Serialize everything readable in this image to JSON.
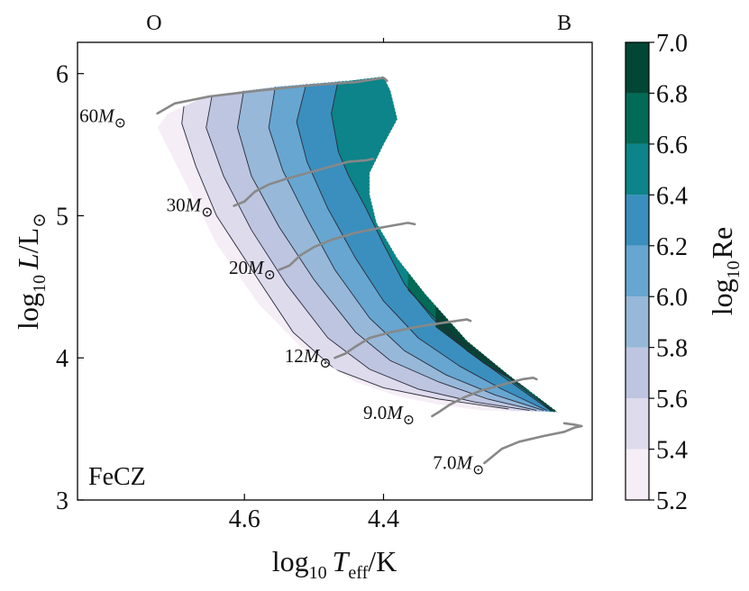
{
  "chart_data": {
    "type": "contour",
    "title": "",
    "panel_label": "FeCZ",
    "xlabel": "log10 Teff/K",
    "ylabel": "log10 L/L⊙",
    "xlabel_parts": {
      "prefix": "log",
      "sub": "10",
      "var": "T",
      "var_sub": "eff",
      "suffix": "/K"
    },
    "ylabel_parts": {
      "prefix": "log",
      "sub": "10",
      "var": "L",
      "suffix": "/L"
    },
    "xlim": [
      4.84,
      4.1
    ],
    "ylim": [
      3.0,
      6.22
    ],
    "x_inverted": true,
    "x_ticks": [
      4.6,
      4.4
    ],
    "x_tick_labels": [
      "4.6",
      "4.4"
    ],
    "y_ticks": [
      3,
      4,
      5,
      6
    ],
    "y_tick_labels": [
      "3",
      "4",
      "5",
      "6"
    ],
    "top_axis_labels": [
      {
        "text": "O",
        "x": 4.73
      },
      {
        "text": "B",
        "x": 4.14
      }
    ],
    "top_axis_tick": 4.4,
    "colorbar": {
      "label": "log10Re",
      "label_parts": {
        "prefix": "log",
        "sub": "10",
        "var": "Re"
      },
      "levels": [
        5.2,
        5.4,
        5.6,
        5.8,
        6.0,
        6.2,
        6.4,
        6.6,
        6.8,
        7.0
      ],
      "tick_labels": [
        "5.2",
        "5.4",
        "5.6",
        "5.8",
        "6.0",
        "6.2",
        "6.4",
        "6.6",
        "6.8",
        "7.0"
      ],
      "colors": [
        "#f6eef6",
        "#dddbec",
        "#bdc5e0",
        "#97b8d9",
        "#66a6d1",
        "#3a8fbe",
        "#0c8489",
        "#016b57",
        "#024636"
      ]
    },
    "region_outline": [
      [
        4.71,
        5.72
      ],
      [
        4.66,
        5.83
      ],
      [
        4.6,
        5.88
      ],
      [
        4.55,
        5.91
      ],
      [
        4.5,
        5.93
      ],
      [
        4.45,
        5.95
      ],
      [
        4.4,
        5.98
      ],
      [
        4.39,
        5.88
      ],
      [
        4.38,
        5.68
      ],
      [
        4.4,
        5.5
      ],
      [
        4.42,
        5.3
      ],
      [
        4.42,
        5.15
      ],
      [
        4.41,
        4.95
      ],
      [
        4.38,
        4.7
      ],
      [
        4.34,
        4.45
      ],
      [
        4.28,
        4.12
      ],
      [
        4.22,
        3.88
      ],
      [
        4.15,
        3.62
      ],
      [
        4.26,
        3.63
      ],
      [
        4.32,
        3.67
      ],
      [
        4.38,
        3.73
      ],
      [
        4.44,
        3.83
      ],
      [
        4.52,
        4.08
      ],
      [
        4.58,
        4.38
      ],
      [
        4.64,
        4.8
      ],
      [
        4.69,
        5.28
      ],
      [
        4.725,
        5.62
      ]
    ],
    "contour_lines": [
      {
        "level": 5.4,
        "points": [
          [
            4.685,
            5.85
          ],
          [
            4.69,
            5.65
          ],
          [
            4.67,
            5.35
          ],
          [
            4.64,
            5.0
          ],
          [
            4.58,
            4.55
          ],
          [
            4.53,
            4.18
          ],
          [
            4.47,
            3.92
          ],
          [
            4.4,
            3.79
          ],
          [
            4.32,
            3.71
          ],
          [
            4.22,
            3.64
          ]
        ]
      },
      {
        "level": 5.6,
        "points": [
          [
            4.645,
            5.89
          ],
          [
            4.655,
            5.62
          ],
          [
            4.63,
            5.28
          ],
          [
            4.59,
            4.9
          ],
          [
            4.54,
            4.52
          ],
          [
            4.48,
            4.14
          ],
          [
            4.42,
            3.92
          ],
          [
            4.35,
            3.78
          ],
          [
            4.27,
            3.69
          ],
          [
            4.19,
            3.63
          ]
        ]
      },
      {
        "level": 5.8,
        "points": [
          [
            4.6,
            5.91
          ],
          [
            4.61,
            5.62
          ],
          [
            4.59,
            5.28
          ],
          [
            4.55,
            4.92
          ],
          [
            4.5,
            4.55
          ],
          [
            4.44,
            4.18
          ],
          [
            4.39,
            3.98
          ],
          [
            4.32,
            3.83
          ],
          [
            4.25,
            3.71
          ],
          [
            4.18,
            3.63
          ]
        ]
      },
      {
        "level": 6.0,
        "points": [
          [
            4.555,
            5.93
          ],
          [
            4.565,
            5.62
          ],
          [
            4.545,
            5.32
          ],
          [
            4.51,
            4.98
          ],
          [
            4.47,
            4.62
          ],
          [
            4.42,
            4.28
          ],
          [
            4.37,
            4.05
          ],
          [
            4.31,
            3.88
          ],
          [
            4.24,
            3.74
          ],
          [
            4.17,
            3.63
          ]
        ]
      },
      {
        "level": 6.2,
        "points": [
          [
            4.51,
            5.95
          ],
          [
            4.525,
            5.66
          ],
          [
            4.51,
            5.38
          ],
          [
            4.48,
            5.05
          ],
          [
            4.44,
            4.7
          ],
          [
            4.4,
            4.4
          ],
          [
            4.35,
            4.14
          ],
          [
            4.29,
            3.94
          ],
          [
            4.23,
            3.78
          ],
          [
            4.165,
            3.63
          ]
        ]
      },
      {
        "level": 6.4,
        "points": [
          [
            4.465,
            5.96
          ],
          [
            4.475,
            5.72
          ],
          [
            4.465,
            5.45
          ],
          [
            4.45,
            5.28
          ],
          [
            4.425,
            5.05
          ],
          [
            4.4,
            4.8
          ],
          [
            4.37,
            4.52
          ],
          [
            4.33,
            4.28
          ],
          [
            4.28,
            4.05
          ],
          [
            4.22,
            3.84
          ],
          [
            4.16,
            3.63
          ]
        ]
      },
      {
        "level": 6.6,
        "points": [
          [
            4.365,
            4.48
          ],
          [
            4.33,
            4.3
          ],
          [
            4.29,
            4.12
          ],
          [
            4.25,
            3.98
          ],
          [
            4.21,
            3.82
          ],
          [
            4.16,
            3.64
          ]
        ]
      },
      {
        "level": 6.8,
        "points": [
          [
            4.325,
            4.22
          ],
          [
            4.29,
            4.09
          ],
          [
            4.255,
            3.96
          ],
          [
            4.22,
            3.86
          ],
          [
            4.19,
            3.77
          ]
        ]
      }
    ],
    "tracks": [
      {
        "label": "60M⊙",
        "mass": "60",
        "label_x": 4.77,
        "label_y": 5.66,
        "points": [
          [
            4.725,
            5.72
          ],
          [
            4.7,
            5.79
          ],
          [
            4.65,
            5.84
          ],
          [
            4.58,
            5.88
          ],
          [
            4.5,
            5.92
          ],
          [
            4.44,
            5.94
          ],
          [
            4.4,
            5.97
          ],
          [
            4.395,
            5.95
          ]
        ]
      },
      {
        "label": "30M⊙",
        "mass": "30",
        "label_x": 4.645,
        "label_y": 5.03,
        "points": [
          [
            4.615,
            5.07
          ],
          [
            4.6,
            5.1
          ],
          [
            4.585,
            5.17
          ],
          [
            4.565,
            5.22
          ],
          [
            4.54,
            5.26
          ],
          [
            4.51,
            5.3
          ],
          [
            4.48,
            5.34
          ],
          [
            4.45,
            5.38
          ],
          [
            4.425,
            5.39
          ],
          [
            4.415,
            5.4
          ]
        ]
      },
      {
        "label": "20M⊙",
        "mass": "20",
        "label_x": 4.555,
        "label_y": 4.59,
        "points": [
          [
            4.55,
            4.62
          ],
          [
            4.535,
            4.65
          ],
          [
            4.52,
            4.72
          ],
          [
            4.5,
            4.78
          ],
          [
            4.475,
            4.83
          ],
          [
            4.44,
            4.88
          ],
          [
            4.4,
            4.92
          ],
          [
            4.365,
            4.95
          ],
          [
            4.355,
            4.94
          ]
        ]
      },
      {
        "label": "12M⊙",
        "mass": "12",
        "label_x": 4.475,
        "label_y": 3.97,
        "points": [
          [
            4.47,
            4.0
          ],
          [
            4.455,
            4.03
          ],
          [
            4.44,
            4.08
          ],
          [
            4.42,
            4.14
          ],
          [
            4.39,
            4.18
          ],
          [
            4.35,
            4.22
          ],
          [
            4.31,
            4.25
          ],
          [
            4.28,
            4.27
          ],
          [
            4.275,
            4.26
          ]
        ]
      },
      {
        "label": "9.0M⊙",
        "mass": "9.0",
        "label_x": 4.355,
        "label_y": 3.57,
        "points": [
          [
            4.33,
            3.59
          ],
          [
            4.32,
            3.62
          ],
          [
            4.305,
            3.67
          ],
          [
            4.285,
            3.72
          ],
          [
            4.26,
            3.77
          ],
          [
            4.23,
            3.81
          ],
          [
            4.2,
            3.85
          ],
          [
            4.185,
            3.86
          ],
          [
            4.18,
            3.85
          ]
        ]
      },
      {
        "label": "7.0M⊙",
        "mass": "7.0",
        "label_x": 4.255,
        "label_y": 3.22,
        "points": [
          [
            4.255,
            3.26
          ],
          [
            4.245,
            3.3
          ],
          [
            4.23,
            3.36
          ],
          [
            4.205,
            3.41
          ],
          [
            4.17,
            3.45
          ],
          [
            4.14,
            3.48
          ],
          [
            4.125,
            3.51
          ],
          [
            4.115,
            3.52
          ],
          [
            4.125,
            3.53
          ],
          [
            4.14,
            3.54
          ]
        ]
      }
    ]
  }
}
